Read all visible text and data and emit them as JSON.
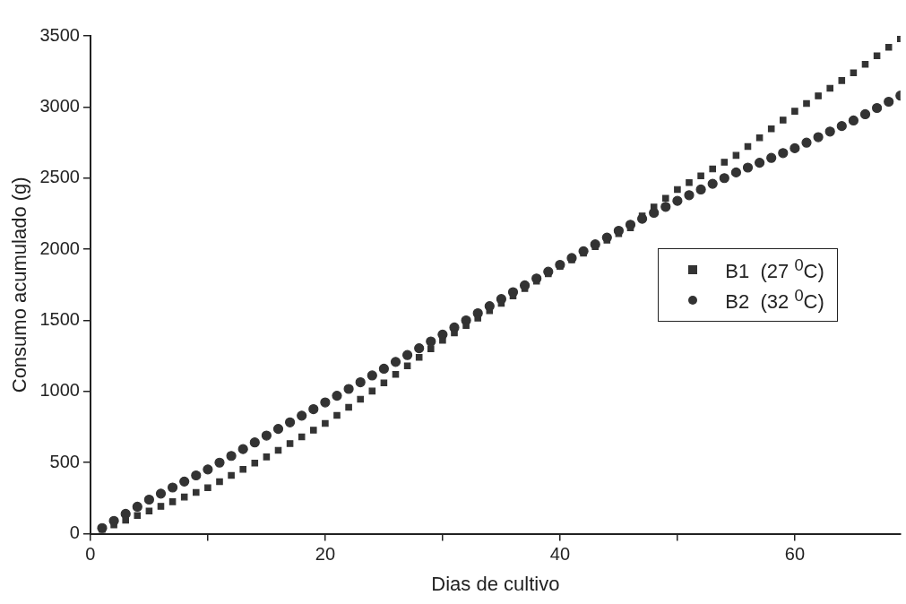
{
  "chart_data": {
    "type": "scatter",
    "xlabel": "Dias de cultivo",
    "ylabel": "Consumo acumulado (g)",
    "x": [
      1,
      2,
      3,
      4,
      5,
      6,
      7,
      8,
      9,
      10,
      11,
      12,
      13,
      14,
      15,
      16,
      17,
      18,
      19,
      20,
      21,
      22,
      23,
      24,
      25,
      26,
      27,
      28,
      29,
      30,
      31,
      32,
      33,
      34,
      35,
      36,
      37,
      38,
      39,
      40,
      41,
      42,
      43,
      44,
      45,
      46,
      47,
      48,
      49,
      50,
      51,
      52,
      53,
      54,
      55,
      56,
      57,
      58,
      59,
      60,
      61,
      62,
      63,
      64,
      65,
      66,
      67,
      68,
      69
    ],
    "series": [
      {
        "name": "B1  (27 $^{0}$C)",
        "color": "#333333",
        "marker": "square",
        "values": [
          30,
          62,
          95,
          128,
          160,
          193,
          225,
          258,
          290,
          323,
          366,
          410,
          453,
          497,
          540,
          587,
          634,
          681,
          728,
          775,
          832,
          889,
          946,
          1003,
          1060,
          1120,
          1180,
          1240,
          1300,
          1360,
          1412,
          1464,
          1516,
          1568,
          1620,
          1672,
          1724,
          1776,
          1828,
          1880,
          1926,
          1972,
          2018,
          2064,
          2110,
          2150,
          2234,
          2296,
          2358,
          2420,
          2468,
          2516,
          2564,
          2612,
          2660,
          2722,
          2784,
          2846,
          2908,
          2970,
          3024,
          3078,
          3132,
          3186,
          3240,
          3300,
          3360,
          3420,
          3480
        ]
      },
      {
        "name": "B2  (32 $^{0}$C)",
        "color": "#333333",
        "marker": "circle",
        "values": [
          40,
          90,
          140,
          190,
          240,
          282,
          325,
          367,
          410,
          452,
          500,
          547,
          595,
          642,
          690,
          737,
          783,
          830,
          876,
          923,
          970,
          1018,
          1065,
          1113,
          1160,
          1208,
          1256,
          1304,
          1352,
          1400,
          1450,
          1500,
          1550,
          1600,
          1650,
          1698,
          1746,
          1794,
          1842,
          1890,
          1938,
          1986,
          2034,
          2082,
          2130,
          2172,
          2214,
          2256,
          2298,
          2340,
          2380,
          2420,
          2460,
          2500,
          2540,
          2574,
          2608,
          2642,
          2676,
          2710,
          2749,
          2788,
          2827,
          2866,
          2905,
          2949,
          2993,
          3037,
          3080
        ]
      }
    ],
    "xlim": [
      0,
      69
    ],
    "xticks": [
      0,
      {
        "value": 10,
        "label": null
      },
      20,
      {
        "value": 30,
        "label": null
      },
      40,
      {
        "value": 50,
        "label": null
      },
      60
    ],
    "ylim": [
      0,
      3500
    ],
    "yticks": [
      0,
      500,
      1000,
      1500,
      2000,
      2500,
      3000,
      3500
    ],
    "grid": false,
    "legend": "right"
  }
}
